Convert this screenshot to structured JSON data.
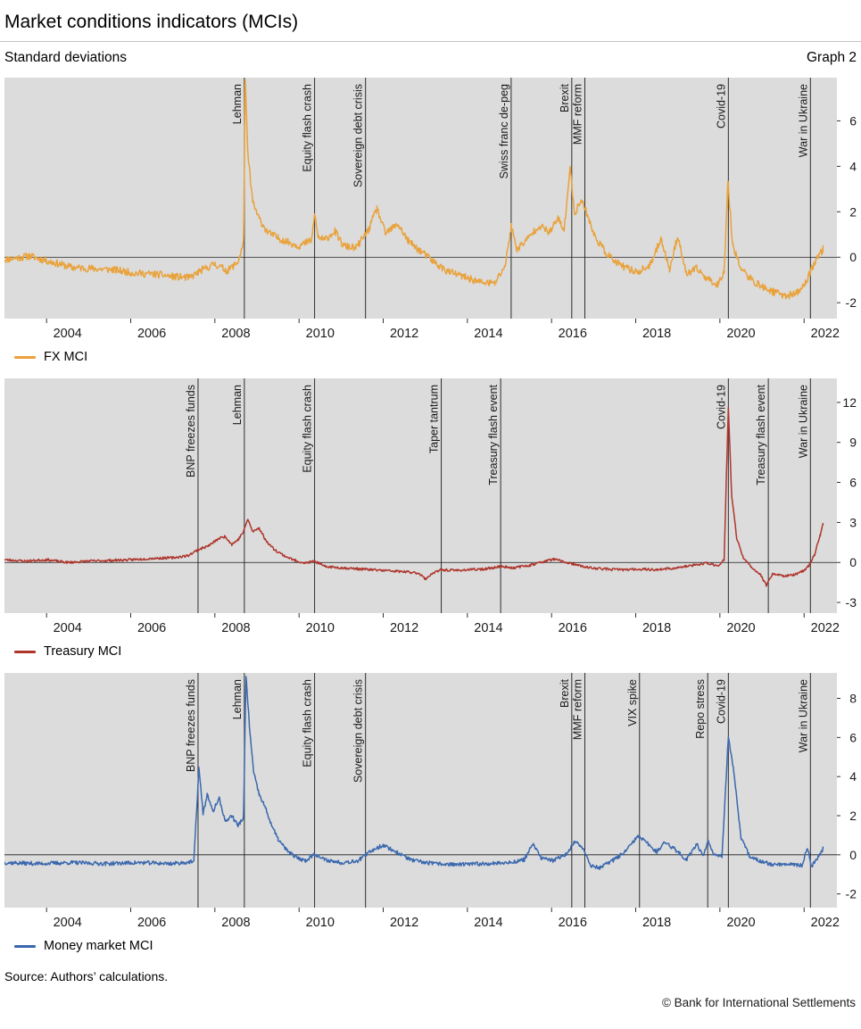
{
  "title": "Market conditions indicators (MCIs)",
  "subtitle_left": "Standard deviations",
  "subtitle_right": "Graph 2",
  "source": "Source: Authors’ calculations.",
  "copyright": "© Bank for International Settlements",
  "chart_data": [
    {
      "type": "line",
      "name": "FX MCI",
      "legend": "FX MCI",
      "color": "#e9a23b",
      "x_domain": [
        2003.0,
        2022.78
      ],
      "x_ticks": [
        2004,
        2006,
        2008,
        2010,
        2012,
        2014,
        2016,
        2018,
        2020,
        2022
      ],
      "y_domain": [
        -2.7,
        7.9
      ],
      "y_ticks": [
        -2,
        0,
        2,
        4,
        6
      ],
      "grid": false,
      "legend_position": "below-left",
      "events": [
        {
          "x": 2008.7,
          "label": "Lehman"
        },
        {
          "x": 2010.37,
          "label": "Equity flash crash"
        },
        {
          "x": 2011.58,
          "label": "Sovereign debt crisis"
        },
        {
          "x": 2015.04,
          "label": "Swiss franc de-peg"
        },
        {
          "x": 2016.48,
          "label": "Brexit"
        },
        {
          "x": 2016.79,
          "label": "MMF reform"
        },
        {
          "x": 2020.2,
          "label": "Covid-19"
        },
        {
          "x": 2022.15,
          "label": "War in Ukraine"
        }
      ],
      "noise": 0.16,
      "seed": 11,
      "anchors": [
        [
          2003.0,
          -0.1
        ],
        [
          2003.6,
          0.05
        ],
        [
          2004.1,
          -0.2
        ],
        [
          2004.6,
          -0.45
        ],
        [
          2005.1,
          -0.5
        ],
        [
          2005.6,
          -0.55
        ],
        [
          2006.1,
          -0.7
        ],
        [
          2006.6,
          -0.75
        ],
        [
          2007.0,
          -0.85
        ],
        [
          2007.4,
          -0.9
        ],
        [
          2007.7,
          -0.55
        ],
        [
          2008.0,
          -0.3
        ],
        [
          2008.3,
          -0.6
        ],
        [
          2008.55,
          -0.2
        ],
        [
          2008.68,
          0.6
        ],
        [
          2008.72,
          7.9
        ],
        [
          2008.78,
          4.6
        ],
        [
          2008.9,
          2.4
        ],
        [
          2009.05,
          1.7
        ],
        [
          2009.25,
          1.1
        ],
        [
          2009.5,
          0.85
        ],
        [
          2009.75,
          0.65
        ],
        [
          2010.0,
          0.5
        ],
        [
          2010.3,
          0.75
        ],
        [
          2010.37,
          1.9
        ],
        [
          2010.45,
          0.9
        ],
        [
          2010.6,
          0.75
        ],
        [
          2010.85,
          1.15
        ],
        [
          2011.05,
          0.5
        ],
        [
          2011.35,
          0.4
        ],
        [
          2011.65,
          1.2
        ],
        [
          2011.85,
          2.15
        ],
        [
          2012.05,
          1.05
        ],
        [
          2012.35,
          1.45
        ],
        [
          2012.6,
          0.7
        ],
        [
          2012.9,
          0.25
        ],
        [
          2013.2,
          -0.2
        ],
        [
          2013.5,
          -0.6
        ],
        [
          2013.9,
          -0.85
        ],
        [
          2014.3,
          -1.1
        ],
        [
          2014.65,
          -1.15
        ],
        [
          2014.9,
          -0.35
        ],
        [
          2015.04,
          1.35
        ],
        [
          2015.18,
          0.35
        ],
        [
          2015.45,
          0.85
        ],
        [
          2015.7,
          1.4
        ],
        [
          2015.95,
          1.1
        ],
        [
          2016.15,
          1.7
        ],
        [
          2016.3,
          1.2
        ],
        [
          2016.44,
          3.95
        ],
        [
          2016.55,
          1.9
        ],
        [
          2016.7,
          2.55
        ],
        [
          2016.85,
          1.9
        ],
        [
          2017.0,
          1.0
        ],
        [
          2017.25,
          0.3
        ],
        [
          2017.5,
          -0.2
        ],
        [
          2017.8,
          -0.5
        ],
        [
          2018.05,
          -0.65
        ],
        [
          2018.35,
          -0.35
        ],
        [
          2018.6,
          0.85
        ],
        [
          2018.8,
          -0.55
        ],
        [
          2019.0,
          0.95
        ],
        [
          2019.2,
          -0.75
        ],
        [
          2019.45,
          -0.5
        ],
        [
          2019.7,
          -0.95
        ],
        [
          2019.95,
          -1.2
        ],
        [
          2020.1,
          -0.6
        ],
        [
          2020.19,
          3.35
        ],
        [
          2020.3,
          0.6
        ],
        [
          2020.5,
          -0.5
        ],
        [
          2020.75,
          -1.0
        ],
        [
          2021.0,
          -1.3
        ],
        [
          2021.3,
          -1.55
        ],
        [
          2021.6,
          -1.7
        ],
        [
          2021.85,
          -1.55
        ],
        [
          2022.05,
          -1.1
        ],
        [
          2022.2,
          -0.4
        ],
        [
          2022.35,
          0.1
        ],
        [
          2022.45,
          0.35
        ]
      ]
    },
    {
      "type": "line",
      "name": "Treasury MCI",
      "legend": "Treasury MCI",
      "color": "#ae352c",
      "x_domain": [
        2003.0,
        2022.78
      ],
      "x_ticks": [
        2004,
        2006,
        2008,
        2010,
        2012,
        2014,
        2016,
        2018,
        2020,
        2022
      ],
      "y_domain": [
        -3.8,
        13.8
      ],
      "y_ticks": [
        -3,
        0,
        3,
        6,
        9,
        12
      ],
      "grid": false,
      "legend_position": "below-left",
      "events": [
        {
          "x": 2007.6,
          "label": "BNP freezes funds"
        },
        {
          "x": 2008.7,
          "label": "Lehman"
        },
        {
          "x": 2010.37,
          "label": "Equity flash crash"
        },
        {
          "x": 2013.38,
          "label": "Taper tantrum"
        },
        {
          "x": 2014.79,
          "label": "Treasury flash event"
        },
        {
          "x": 2020.2,
          "label": "Covid-19"
        },
        {
          "x": 2021.15,
          "label": "Treasury flash event"
        },
        {
          "x": 2022.15,
          "label": "War in Ukraine"
        }
      ],
      "noise": 0.09,
      "seed": 23,
      "anchors": [
        [
          2003.0,
          0.2
        ],
        [
          2003.5,
          0.1
        ],
        [
          2004.0,
          0.2
        ],
        [
          2004.5,
          0.0
        ],
        [
          2005.0,
          0.1
        ],
        [
          2005.5,
          0.15
        ],
        [
          2006.0,
          0.2
        ],
        [
          2006.5,
          0.3
        ],
        [
          2007.0,
          0.35
        ],
        [
          2007.35,
          0.5
        ],
        [
          2007.6,
          0.95
        ],
        [
          2007.85,
          1.25
        ],
        [
          2008.1,
          1.8
        ],
        [
          2008.25,
          1.95
        ],
        [
          2008.4,
          1.35
        ],
        [
          2008.55,
          1.7
        ],
        [
          2008.68,
          2.3
        ],
        [
          2008.78,
          3.25
        ],
        [
          2008.9,
          2.3
        ],
        [
          2009.05,
          2.6
        ],
        [
          2009.2,
          1.7
        ],
        [
          2009.4,
          1.0
        ],
        [
          2009.65,
          0.5
        ],
        [
          2009.9,
          0.15
        ],
        [
          2010.15,
          -0.05
        ],
        [
          2010.37,
          0.1
        ],
        [
          2010.6,
          -0.3
        ],
        [
          2011.0,
          -0.4
        ],
        [
          2011.5,
          -0.5
        ],
        [
          2012.0,
          -0.6
        ],
        [
          2012.5,
          -0.7
        ],
        [
          2012.85,
          -0.8
        ],
        [
          2013.0,
          -1.25
        ],
        [
          2013.15,
          -0.85
        ],
        [
          2013.38,
          -0.55
        ],
        [
          2013.7,
          -0.6
        ],
        [
          2014.0,
          -0.55
        ],
        [
          2014.4,
          -0.5
        ],
        [
          2014.79,
          -0.3
        ],
        [
          2015.1,
          -0.4
        ],
        [
          2015.5,
          -0.2
        ],
        [
          2015.8,
          0.05
        ],
        [
          2016.05,
          0.25
        ],
        [
          2016.35,
          0.0
        ],
        [
          2016.6,
          -0.2
        ],
        [
          2016.9,
          -0.4
        ],
        [
          2017.3,
          -0.5
        ],
        [
          2017.7,
          -0.55
        ],
        [
          2018.1,
          -0.5
        ],
        [
          2018.5,
          -0.55
        ],
        [
          2019.0,
          -0.4
        ],
        [
          2019.4,
          -0.2
        ],
        [
          2019.7,
          -0.05
        ],
        [
          2019.95,
          -0.25
        ],
        [
          2020.1,
          0.2
        ],
        [
          2020.2,
          11.6
        ],
        [
          2020.28,
          5.0
        ],
        [
          2020.4,
          1.8
        ],
        [
          2020.55,
          0.4
        ],
        [
          2020.75,
          -0.4
        ],
        [
          2020.95,
          -0.85
        ],
        [
          2021.1,
          -1.7
        ],
        [
          2021.25,
          -0.85
        ],
        [
          2021.5,
          -1.0
        ],
        [
          2021.75,
          -0.95
        ],
        [
          2021.95,
          -0.7
        ],
        [
          2022.1,
          -0.3
        ],
        [
          2022.25,
          0.6
        ],
        [
          2022.38,
          2.0
        ],
        [
          2022.45,
          2.95
        ]
      ]
    },
    {
      "type": "line",
      "name": "Money market MCI",
      "legend": "Money market MCI",
      "color": "#3a68ae",
      "x_domain": [
        2003.0,
        2022.78
      ],
      "x_ticks": [
        2004,
        2006,
        2008,
        2010,
        2012,
        2014,
        2016,
        2018,
        2020,
        2022
      ],
      "y_domain": [
        -2.7,
        9.3
      ],
      "y_ticks": [
        -2,
        0,
        2,
        4,
        6,
        8
      ],
      "grid": false,
      "legend_position": "below-left",
      "events": [
        {
          "x": 2007.6,
          "label": "BNP freezes funds"
        },
        {
          "x": 2008.7,
          "label": "Lehman"
        },
        {
          "x": 2010.37,
          "label": "Equity flash crash"
        },
        {
          "x": 2011.58,
          "label": "Sovereign debt crisis"
        },
        {
          "x": 2016.48,
          "label": "Brexit"
        },
        {
          "x": 2016.79,
          "label": "MMF reform"
        },
        {
          "x": 2018.09,
          "label": "VIX spike"
        },
        {
          "x": 2019.71,
          "label": "Repo stress"
        },
        {
          "x": 2020.2,
          "label": "Covid-19"
        },
        {
          "x": 2022.15,
          "label": "War in Ukraine"
        }
      ],
      "noise": 0.1,
      "seed": 37,
      "anchors": [
        [
          2003.0,
          -0.4
        ],
        [
          2003.8,
          -0.45
        ],
        [
          2004.6,
          -0.4
        ],
        [
          2005.4,
          -0.45
        ],
        [
          2006.2,
          -0.4
        ],
        [
          2007.0,
          -0.45
        ],
        [
          2007.5,
          -0.35
        ],
        [
          2007.62,
          4.45
        ],
        [
          2007.72,
          2.1
        ],
        [
          2007.82,
          3.1
        ],
        [
          2007.95,
          2.2
        ],
        [
          2008.1,
          2.9
        ],
        [
          2008.25,
          1.7
        ],
        [
          2008.4,
          2.0
        ],
        [
          2008.55,
          1.5
        ],
        [
          2008.68,
          1.9
        ],
        [
          2008.74,
          9.15
        ],
        [
          2008.82,
          6.6
        ],
        [
          2008.92,
          4.2
        ],
        [
          2009.05,
          3.1
        ],
        [
          2009.2,
          2.4
        ],
        [
          2009.35,
          1.5
        ],
        [
          2009.5,
          0.8
        ],
        [
          2009.7,
          0.25
        ],
        [
          2009.9,
          -0.1
        ],
        [
          2010.15,
          -0.3
        ],
        [
          2010.37,
          0.05
        ],
        [
          2010.6,
          -0.25
        ],
        [
          2011.0,
          -0.4
        ],
        [
          2011.4,
          -0.3
        ],
        [
          2011.75,
          0.25
        ],
        [
          2012.0,
          0.5
        ],
        [
          2012.3,
          0.15
        ],
        [
          2012.7,
          -0.3
        ],
        [
          2013.2,
          -0.45
        ],
        [
          2013.8,
          -0.5
        ],
        [
          2014.4,
          -0.45
        ],
        [
          2015.0,
          -0.4
        ],
        [
          2015.35,
          -0.25
        ],
        [
          2015.55,
          0.55
        ],
        [
          2015.75,
          -0.15
        ],
        [
          2016.05,
          -0.3
        ],
        [
          2016.35,
          0.05
        ],
        [
          2016.55,
          0.65
        ],
        [
          2016.75,
          0.35
        ],
        [
          2016.95,
          -0.6
        ],
        [
          2017.15,
          -0.65
        ],
        [
          2017.45,
          -0.3
        ],
        [
          2017.75,
          0.15
        ],
        [
          2018.05,
          0.95
        ],
        [
          2018.3,
          0.55
        ],
        [
          2018.5,
          0.15
        ],
        [
          2018.7,
          0.65
        ],
        [
          2018.95,
          0.25
        ],
        [
          2019.2,
          -0.25
        ],
        [
          2019.45,
          0.55
        ],
        [
          2019.6,
          -0.05
        ],
        [
          2019.72,
          0.75
        ],
        [
          2019.85,
          0.05
        ],
        [
          2020.05,
          -0.05
        ],
        [
          2020.2,
          6.0
        ],
        [
          2020.32,
          4.4
        ],
        [
          2020.5,
          0.9
        ],
        [
          2020.7,
          -0.05
        ],
        [
          2020.95,
          -0.35
        ],
        [
          2021.3,
          -0.5
        ],
        [
          2021.7,
          -0.45
        ],
        [
          2021.95,
          -0.55
        ],
        [
          2022.08,
          0.35
        ],
        [
          2022.18,
          -0.6
        ],
        [
          2022.32,
          -0.15
        ],
        [
          2022.45,
          0.3
        ]
      ]
    }
  ]
}
